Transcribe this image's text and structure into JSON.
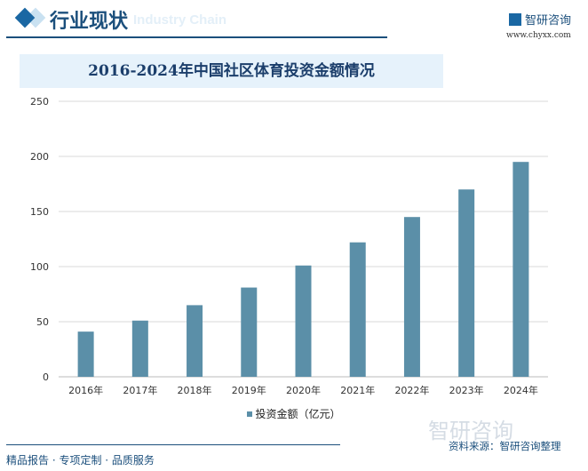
{
  "header": {
    "title": "行业现状",
    "ghost_text": "Industry Chain",
    "brand": "智研咨询",
    "url": "www.chyxx.com"
  },
  "colors": {
    "bar": "#5b8fa8",
    "accent": "#1b4f7c",
    "title_bg": "#e6f2fb"
  },
  "chart_data": {
    "type": "bar",
    "title": "2016-2024年中国社区体育投资金额情况",
    "categories": [
      "2016年",
      "2017年",
      "2018年",
      "2019年",
      "2020年",
      "2021年",
      "2022年",
      "2023年",
      "2024年"
    ],
    "series": [
      {
        "name": "投资金额（亿元）",
        "values": [
          41,
          51,
          65,
          81,
          101,
          122,
          145,
          170,
          195
        ]
      }
    ],
    "ylim": [
      0,
      250
    ],
    "yticks": [
      0,
      50,
      100,
      150,
      200,
      250
    ],
    "grid": true,
    "legend": "bottom"
  },
  "footer": {
    "source": "资料来源：智研咨询整理",
    "slogan": "精品报告 · 专项定制 · 品质服务",
    "watermark": "智研咨询"
  }
}
